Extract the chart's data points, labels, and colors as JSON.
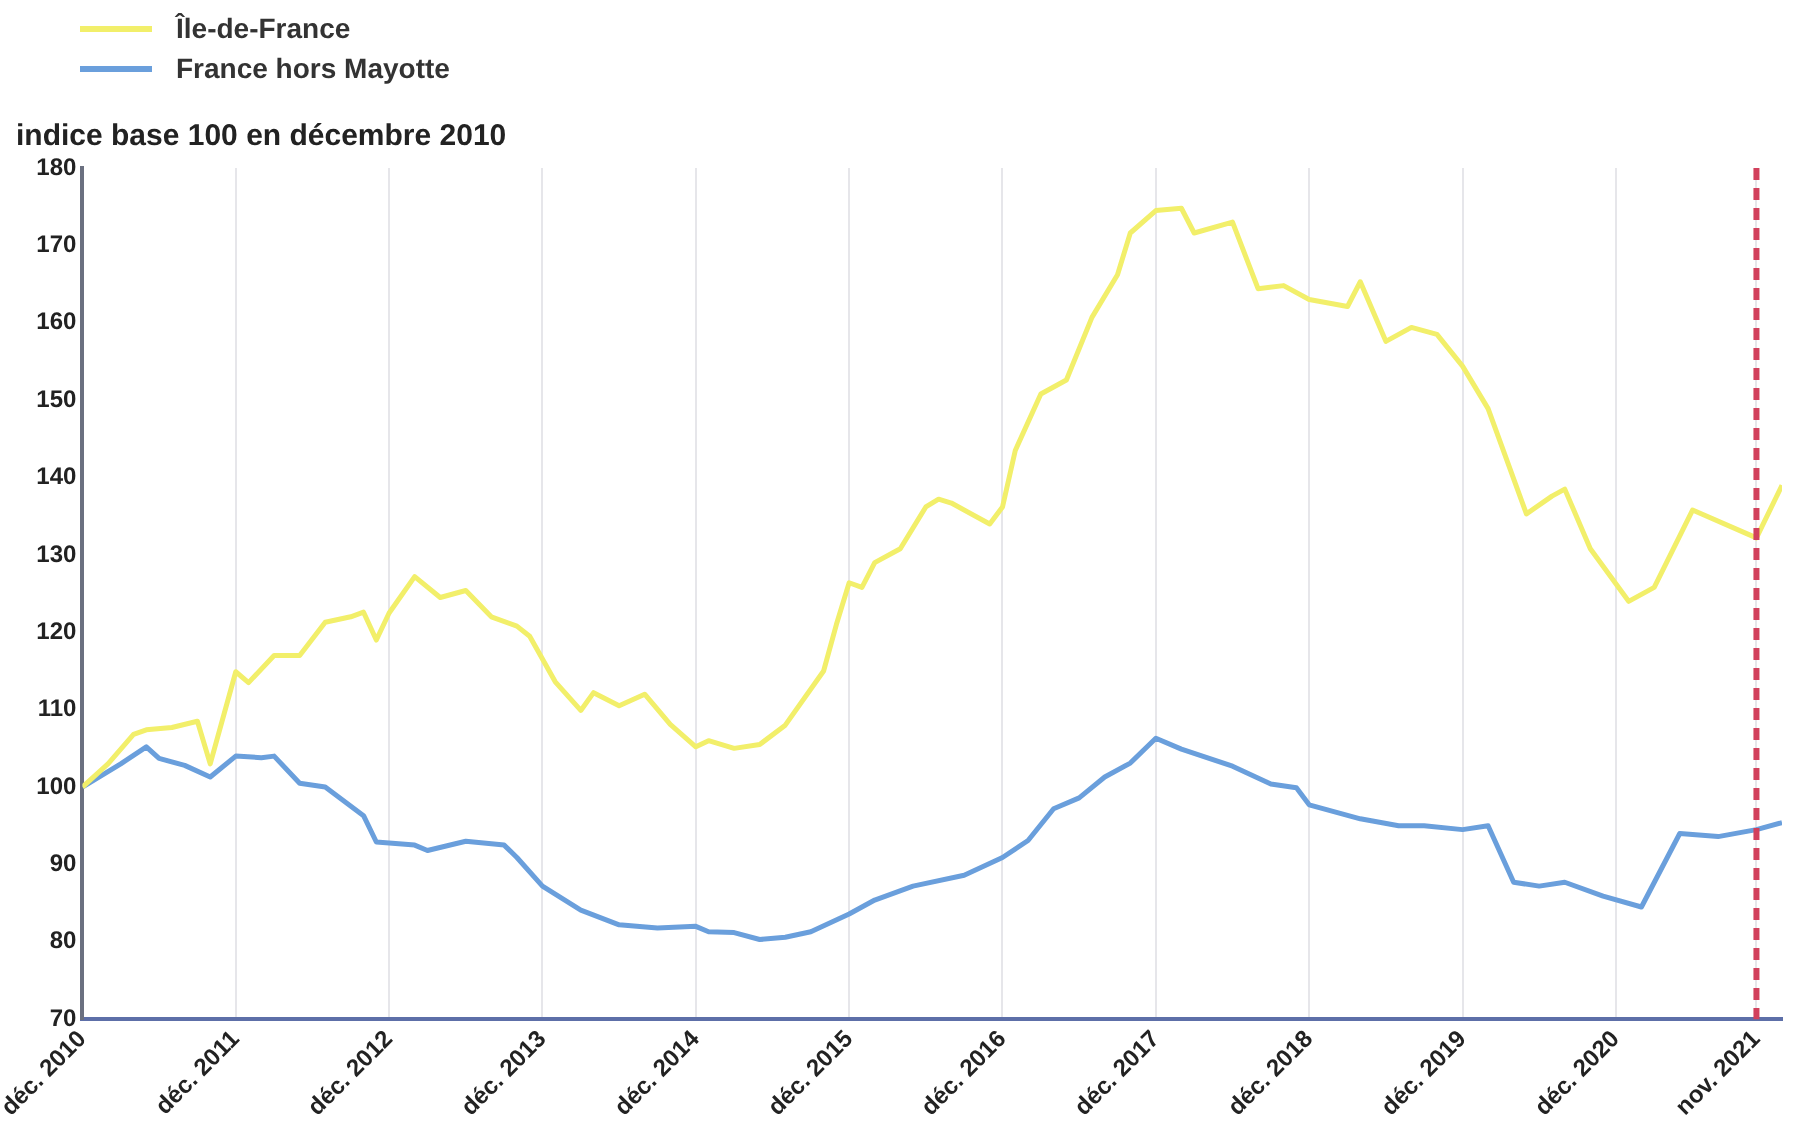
{
  "chart_data": {
    "type": "line",
    "ylabel": "indice base 100 en décembre 2010",
    "legend": "top left",
    "grid": "x",
    "marker": "none",
    "line_style": "solid",
    "xlim": [
      "2010-12",
      "2022-01"
    ],
    "ylim": [
      70,
      180
    ],
    "yticks": [
      70,
      80,
      90,
      100,
      110,
      120,
      130,
      140,
      150,
      160,
      170,
      180
    ],
    "xticks": [
      {
        "value": "2010-12",
        "label": "déc. 2010"
      },
      {
        "value": "2011-12",
        "label": "déc. 2011"
      },
      {
        "value": "2012-12",
        "label": "déc. 2012"
      },
      {
        "value": "2013-12",
        "label": "déc. 2013"
      },
      {
        "value": "2014-12",
        "label": "déc. 2014"
      },
      {
        "value": "2015-12",
        "label": "déc. 2015"
      },
      {
        "value": "2016-12",
        "label": "déc. 2016"
      },
      {
        "value": "2017-12",
        "label": "déc. 2017"
      },
      {
        "value": "2018-12",
        "label": "déc. 2018"
      },
      {
        "value": "2019-12",
        "label": "déc. 2019"
      },
      {
        "value": "2020-12",
        "label": "déc. 2020"
      },
      {
        "value": "2021-11",
        "label": "nov. 2021"
      }
    ],
    "ref_lines": [
      {
        "axis": "x",
        "value": "2021-11",
        "color": "#d2405c",
        "line_style": "dashed"
      }
    ],
    "series": [
      {
        "name": "Île-de-France",
        "color": "#f2ef6a",
        "x": [
          "2010-12",
          "2011-02",
          "2011-04",
          "2011-05",
          "2011-07",
          "2011-09",
          "2011-10",
          "2011-12",
          "2012-01",
          "2012-03",
          "2012-05",
          "2012-07",
          "2012-09",
          "2012-10",
          "2012-11",
          "2012-12",
          "2013-02",
          "2013-04",
          "2013-06",
          "2013-08",
          "2013-10",
          "2013-11",
          "2014-01",
          "2014-03",
          "2014-04",
          "2014-06",
          "2014-08",
          "2014-10",
          "2014-12",
          "2015-01",
          "2015-03",
          "2015-05",
          "2015-07",
          "2015-10",
          "2015-11",
          "2015-12",
          "2016-01",
          "2016-02",
          "2016-04",
          "2016-06",
          "2016-07",
          "2016-08",
          "2016-11",
          "2016-12",
          "2017-01",
          "2017-03",
          "2017-05",
          "2017-07",
          "2017-09",
          "2017-10",
          "2017-12",
          "2018-02",
          "2018-03",
          "2018-06",
          "2018-08",
          "2018-10",
          "2018-12",
          "2019-03",
          "2019-04",
          "2019-06",
          "2019-08",
          "2019-10",
          "2019-12",
          "2020-02",
          "2020-05",
          "2020-07",
          "2020-08",
          "2020-10",
          "2021-01",
          "2021-03",
          "2021-06",
          "2021-11",
          "2022-01"
        ],
        "values": [
          100,
          103,
          106.8,
          107.4,
          107.7,
          108.5,
          103,
          114.9,
          113.5,
          117,
          117,
          121.3,
          122,
          122.6,
          119,
          122.5,
          127.2,
          124.5,
          125.4,
          122,
          120.8,
          119.5,
          113.6,
          109.9,
          112.2,
          110.5,
          112,
          108.1,
          105.2,
          106,
          105,
          105.5,
          108,
          115,
          121,
          126.4,
          125.8,
          129,
          130.8,
          136.2,
          137.2,
          136.7,
          134,
          136.2,
          143.5,
          150.8,
          152.6,
          160.7,
          166.2,
          171.6,
          174.5,
          174.8,
          171.6,
          173,
          164.4,
          164.8,
          163,
          162.1,
          165.3,
          157.6,
          159.4,
          158.5,
          154.4,
          148.9,
          135.3,
          137.6,
          138.5,
          130.8,
          124,
          125.8,
          135.8,
          132.2,
          139
        ]
      },
      {
        "name": "France hors Mayotte",
        "color": "#6a9fdc",
        "x": [
          "2010-12",
          "2011-03",
          "2011-05",
          "2011-06",
          "2011-08",
          "2011-10",
          "2011-12",
          "2012-02",
          "2012-03",
          "2012-05",
          "2012-07",
          "2012-10",
          "2012-11",
          "2013-02",
          "2013-03",
          "2013-06",
          "2013-09",
          "2013-10",
          "2013-12",
          "2014-03",
          "2014-06",
          "2014-09",
          "2014-12",
          "2015-01",
          "2015-03",
          "2015-05",
          "2015-07",
          "2015-09",
          "2015-12",
          "2016-02",
          "2016-05",
          "2016-09",
          "2016-12",
          "2017-02",
          "2017-04",
          "2017-06",
          "2017-08",
          "2017-10",
          "2017-12",
          "2018-02",
          "2018-06",
          "2018-09",
          "2018-11",
          "2018-12",
          "2019-04",
          "2019-07",
          "2019-09",
          "2019-12",
          "2020-02",
          "2020-04",
          "2020-06",
          "2020-08",
          "2020-11",
          "2021-02",
          "2021-05",
          "2021-08",
          "2021-11",
          "2022-01"
        ],
        "values": [
          100,
          103,
          105.2,
          103.7,
          102.8,
          101.3,
          104,
          103.8,
          104,
          100.5,
          100,
          96.3,
          92.9,
          92.5,
          91.8,
          93,
          92.5,
          90.9,
          87.2,
          84.1,
          82.2,
          81.8,
          82,
          81.3,
          81.2,
          80.3,
          80.6,
          81.3,
          83.6,
          85.4,
          87.2,
          88.6,
          90.9,
          93.1,
          97.2,
          98.6,
          101.3,
          103.1,
          106.3,
          104.9,
          102.7,
          100.4,
          99.9,
          97.7,
          95.9,
          95,
          95,
          94.5,
          95,
          87.7,
          87.2,
          87.7,
          85.9,
          84.5,
          94,
          93.6,
          94.5,
          95.4
        ]
      }
    ]
  }
}
